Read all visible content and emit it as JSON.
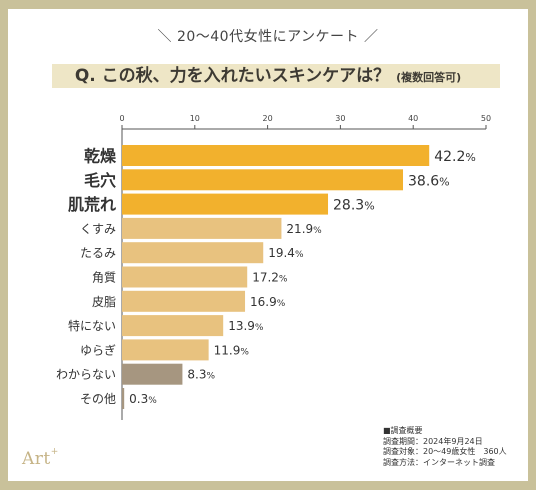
{
  "subtitle": "＼ 20〜40代女性にアンケート ／",
  "question": "Q. この秋、力を入れたいスキンケアは？",
  "question_note": "(複数回答可)",
  "chart_data": {
    "type": "bar",
    "orientation": "horizontal",
    "categories": [
      "乾燥",
      "毛穴",
      "肌荒れ",
      "くすみ",
      "たるみ",
      "角質",
      "皮脂",
      "特にない",
      "ゆらぎ",
      "わからない",
      "その他"
    ],
    "values": [
      42.2,
      38.6,
      28.3,
      21.9,
      19.4,
      17.2,
      16.9,
      13.9,
      11.9,
      8.3,
      0.3
    ],
    "value_labels": [
      "42.2",
      "38.6",
      "28.3",
      "21.9",
      "19.4",
      "17.2",
      "16.9",
      "13.9",
      "11.9",
      "8.3",
      "0.3"
    ],
    "unit": "%",
    "xlim": [
      0,
      50
    ],
    "xticks": [
      "0",
      "10",
      "20",
      "30",
      "40",
      "50"
    ],
    "xtick_values": [
      0,
      10,
      20,
      30,
      40,
      50
    ],
    "axis_position": "top",
    "grid": false,
    "legend": "none",
    "highlight_count": 3,
    "colors": {
      "highlight": "#f2b12d",
      "normal": "#e8c27f",
      "unknown": "#a69680",
      "other": "#a69680"
    }
  },
  "survey_note": {
    "heading": "■調査概要",
    "lines": [
      "調査期間：2024年9月24日",
      "調査対象：20〜49歳女性　360人",
      "調査方法：インターネット調査"
    ]
  },
  "logo": {
    "text": "Art",
    "mark": "+"
  },
  "colors": {
    "frame": "#c9c19a",
    "question_band": "#eee6c6"
  }
}
